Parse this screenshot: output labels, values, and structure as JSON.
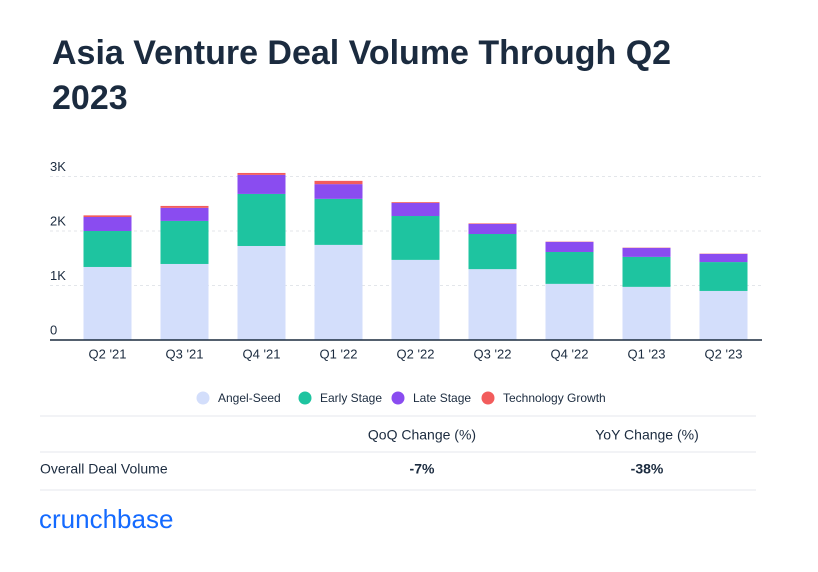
{
  "chart_data": {
    "type": "stacked_bar",
    "title": "Asia Venture Deal Volume Through Q2 2023",
    "categories": [
      "Q2 '21",
      "Q3 '21",
      "Q4 '21",
      "Q1 '22",
      "Q2 '22",
      "Q3 '22",
      "Q4 '22",
      "Q1 '23",
      "Q2 '23"
    ],
    "series": [
      {
        "name": "Angel-Seed",
        "color": "#d3defb",
        "values": [
          1340,
          1395,
          1725,
          1745,
          1470,
          1300,
          1030,
          975,
          900
        ]
      },
      {
        "name": "Early Stage",
        "color": "#1ec4a0",
        "values": [
          660,
          790,
          955,
          845,
          805,
          645,
          585,
          550,
          530
        ]
      },
      {
        "name": "Late Stage",
        "color": "#8a4cf0",
        "values": [
          257,
          240,
          350,
          270,
          240,
          185,
          185,
          165,
          150
        ]
      },
      {
        "name": "Technology Growth",
        "color": "#f25c5c",
        "values": [
          30,
          35,
          35,
          60,
          15,
          10,
          5,
          5,
          5
        ]
      }
    ],
    "ylim": [
      0,
      3200
    ],
    "yticks": [
      0,
      {
        "value": 1000,
        "label": "1K"
      },
      {
        "value": 2000,
        "label": "2K"
      },
      {
        "value": 3000,
        "label": "3K"
      }
    ],
    "grid": true,
    "legend": "bottom"
  },
  "table": {
    "headers": [
      "QoQ Change (%)",
      "YoY Change (%)"
    ],
    "rows": [
      {
        "label": "Overall Deal Volume",
        "cells": [
          "-7%",
          "-38%"
        ]
      }
    ]
  },
  "brand": "crunchbase"
}
